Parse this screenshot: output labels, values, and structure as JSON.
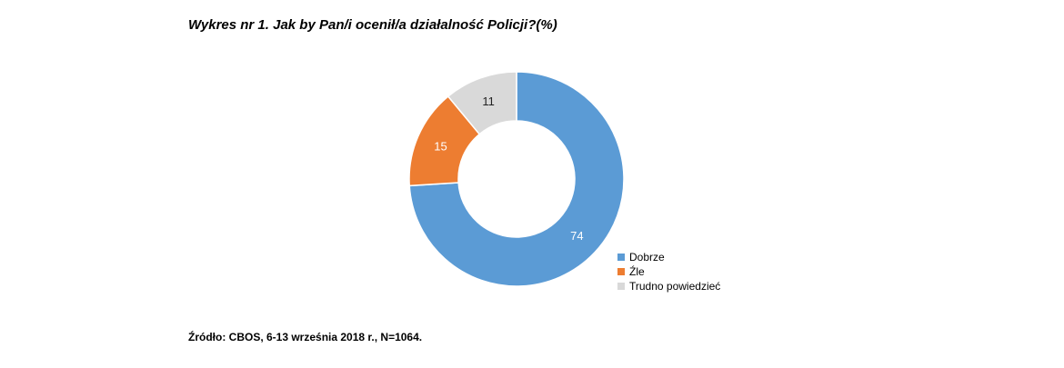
{
  "chart_data": {
    "type": "pie",
    "title": "Wykres nr 1.  Jak by Pan/i ocenił/a działalność Policji?(%)",
    "categories": [
      "Dobrze",
      "Źle",
      "Trudno powiedzieć"
    ],
    "values": [
      74,
      15,
      11
    ],
    "data_labels": [
      "74",
      "15",
      "11"
    ],
    "colors": [
      "#5b9bd5",
      "#ed7d31",
      "#d9d9d9"
    ],
    "label_colors": [
      "#ffffff",
      "#ffffff",
      "#222222"
    ],
    "donut": true,
    "start": "12 o'clock",
    "direction": "clockwise",
    "legend": "right",
    "source": "Źródło: CBOS, 6-13 września 2018 r., N=1064."
  }
}
